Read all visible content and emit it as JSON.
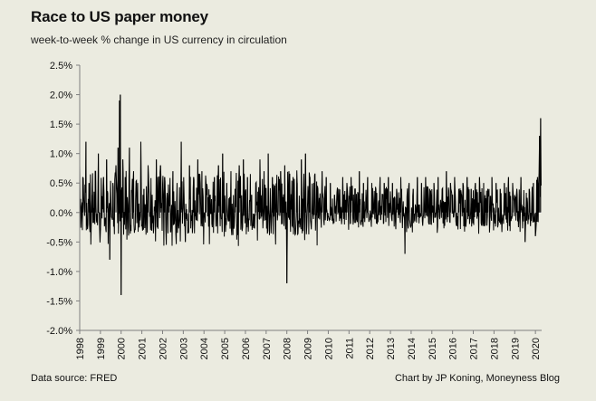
{
  "chart_data": {
    "type": "line",
    "title": "Race to US paper money",
    "subtitle": "week-to-week % change in US currency in circulation",
    "xlabel": "",
    "ylabel": "",
    "xlim": [
      1998,
      2020.3
    ],
    "ylim": [
      -2.0,
      2.5
    ],
    "yticks": [
      "2.5%",
      "2.0%",
      "1.5%",
      "1.0%",
      "0.5%",
      "0.0%",
      "-0.5%",
      "-1.0%",
      "-1.5%",
      "-2.0%"
    ],
    "ytick_values": [
      2.5,
      2.0,
      1.5,
      1.0,
      0.5,
      0.0,
      -0.5,
      -1.0,
      -1.5,
      -2.0
    ],
    "xticks": [
      "1998",
      "1999",
      "2000",
      "2001",
      "2002",
      "2003",
      "2004",
      "2005",
      "2006",
      "2007",
      "2008",
      "2009",
      "2010",
      "2011",
      "2012",
      "2013",
      "2014",
      "2015",
      "2016",
      "2017",
      "2018",
      "2019",
      "2020"
    ],
    "series": [
      {
        "name": "Weekly % change in US currency in circulation",
        "color": "#000000",
        "x": [
          1998.0,
          1998.15,
          1998.3,
          1998.45,
          1998.6,
          1998.75,
          1998.9,
          1999.0,
          1999.15,
          1999.3,
          1999.45,
          1999.6,
          1999.75,
          1999.85,
          1999.92,
          1999.96,
          2000.0,
          2000.08,
          2000.2,
          2000.4,
          2000.6,
          2000.8,
          2000.95,
          2001.1,
          2001.3,
          2001.5,
          2001.7,
          2001.9,
          2002.1,
          2002.3,
          2002.5,
          2002.7,
          2002.9,
          2003.1,
          2003.3,
          2003.5,
          2003.7,
          2003.9,
          2004.1,
          2004.3,
          2004.5,
          2004.7,
          2004.9,
          2005.1,
          2005.3,
          2005.5,
          2005.7,
          2005.9,
          2006.1,
          2006.3,
          2006.5,
          2006.7,
          2006.9,
          2007.1,
          2007.3,
          2007.5,
          2007.7,
          2007.9,
          2008.0,
          2008.1,
          2008.3,
          2008.5,
          2008.7,
          2008.9,
          2009.1,
          2009.3,
          2009.5,
          2009.7,
          2009.9,
          2010.1,
          2010.3,
          2010.5,
          2010.7,
          2010.9,
          2011.1,
          2011.3,
          2011.5,
          2011.7,
          2011.9,
          2012.1,
          2012.3,
          2012.5,
          2012.7,
          2012.9,
          2013.1,
          2013.3,
          2013.5,
          2013.7,
          2013.9,
          2014.1,
          2014.3,
          2014.5,
          2014.7,
          2014.9,
          2015.1,
          2015.3,
          2015.5,
          2015.7,
          2015.9,
          2016.1,
          2016.3,
          2016.5,
          2016.7,
          2016.9,
          2017.1,
          2017.3,
          2017.5,
          2017.7,
          2017.9,
          2018.1,
          2018.3,
          2018.5,
          2018.7,
          2018.9,
          2019.1,
          2019.3,
          2019.5,
          2019.7,
          2019.9,
          2020.0,
          2020.1,
          2020.15,
          2020.2,
          2020.25
        ],
        "values": [
          0.8,
          0.6,
          1.2,
          0.5,
          0.3,
          0.7,
          1.0,
          -0.3,
          0.6,
          0.9,
          -0.8,
          0.5,
          0.8,
          1.1,
          1.9,
          2.0,
          -1.4,
          0.9,
          0.6,
          1.1,
          0.7,
          0.5,
          1.2,
          0.4,
          0.8,
          0.3,
          0.9,
          0.8,
          0.6,
          0.3,
          0.7,
          0.5,
          1.2,
          -0.5,
          0.8,
          0.6,
          0.9,
          0.7,
          0.5,
          0.3,
          0.6,
          0.8,
          1.0,
          0.5,
          0.7,
          0.4,
          0.8,
          0.9,
          0.6,
          0.3,
          0.5,
          0.9,
          0.7,
          1.0,
          0.6,
          0.4,
          0.7,
          0.8,
          -1.2,
          0.7,
          0.6,
          0.5,
          0.9,
          1.0,
          0.6,
          0.5,
          0.4,
          0.7,
          0.6,
          0.5,
          0.3,
          0.4,
          0.6,
          0.5,
          0.6,
          0.4,
          0.7,
          0.5,
          0.6,
          0.5,
          0.4,
          0.6,
          0.5,
          0.6,
          0.5,
          0.4,
          0.6,
          -0.7,
          0.5,
          0.4,
          0.6,
          0.5,
          0.6,
          0.4,
          0.5,
          0.6,
          0.4,
          0.7,
          0.5,
          0.6,
          0.4,
          0.5,
          0.6,
          0.4,
          0.5,
          0.6,
          0.5,
          0.4,
          0.6,
          0.5,
          0.4,
          0.5,
          0.6,
          0.5,
          0.4,
          0.6,
          -0.5,
          0.4,
          0.5,
          -0.4,
          0.6,
          0.5,
          1.3,
          1.6
        ]
      }
    ],
    "grid": false,
    "zero_line": true,
    "legend": "none"
  },
  "footer": {
    "source": "Data source: FRED",
    "credit": "Chart by JP Koning, Moneyness Blog"
  },
  "colors": {
    "background": "#ebebe0",
    "line": "#000000",
    "axis": "#7f7f7f",
    "zero_line": "#ffffff"
  }
}
